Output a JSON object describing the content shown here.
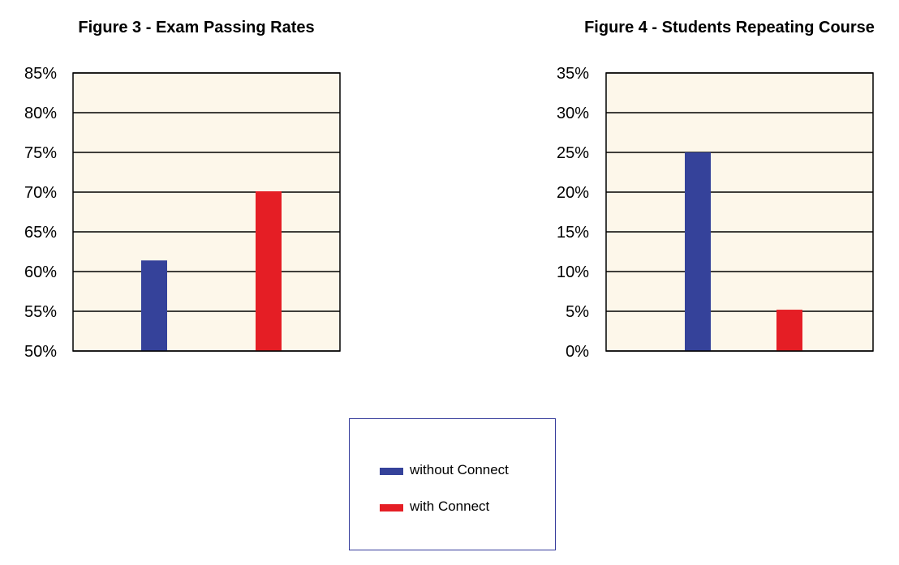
{
  "colors": {
    "without": "#35429a",
    "with": "#e51e25",
    "plot_background": "#fdf7ea",
    "grid": "#000000",
    "legend_border": "#33399a"
  },
  "chart_data": [
    {
      "type": "bar",
      "title": "Figure 3 - Exam Passing Rates",
      "categories": [
        "without Connect",
        "with Connect"
      ],
      "values": [
        61.4,
        70.1
      ],
      "unit": "%",
      "ylim": [
        50,
        85
      ],
      "yticks": [
        50,
        55,
        60,
        65,
        70,
        75,
        80,
        85
      ],
      "ytick_labels": [
        "50%",
        "55%",
        "60%",
        "65%",
        "70%",
        "75%",
        "80%",
        "85%"
      ],
      "grid": true,
      "xlabel": "",
      "ylabel": ""
    },
    {
      "type": "bar",
      "title": "Figure 4 - Students Repeating Course",
      "categories": [
        "without Connect",
        "with Connect"
      ],
      "values": [
        25,
        5.2
      ],
      "unit": "%",
      "ylim": [
        0,
        35
      ],
      "yticks": [
        0,
        5,
        10,
        15,
        20,
        25,
        30,
        35
      ],
      "ytick_labels": [
        "0%",
        "5%",
        "10%",
        "15%",
        "20%",
        "25%",
        "30%",
        "35%"
      ],
      "grid": true,
      "xlabel": "",
      "ylabel": ""
    }
  ],
  "legend": {
    "placement": "bottom-center",
    "items": [
      {
        "label": "without Connect",
        "color_key": "without"
      },
      {
        "label": "with Connect",
        "color_key": "with"
      }
    ]
  }
}
